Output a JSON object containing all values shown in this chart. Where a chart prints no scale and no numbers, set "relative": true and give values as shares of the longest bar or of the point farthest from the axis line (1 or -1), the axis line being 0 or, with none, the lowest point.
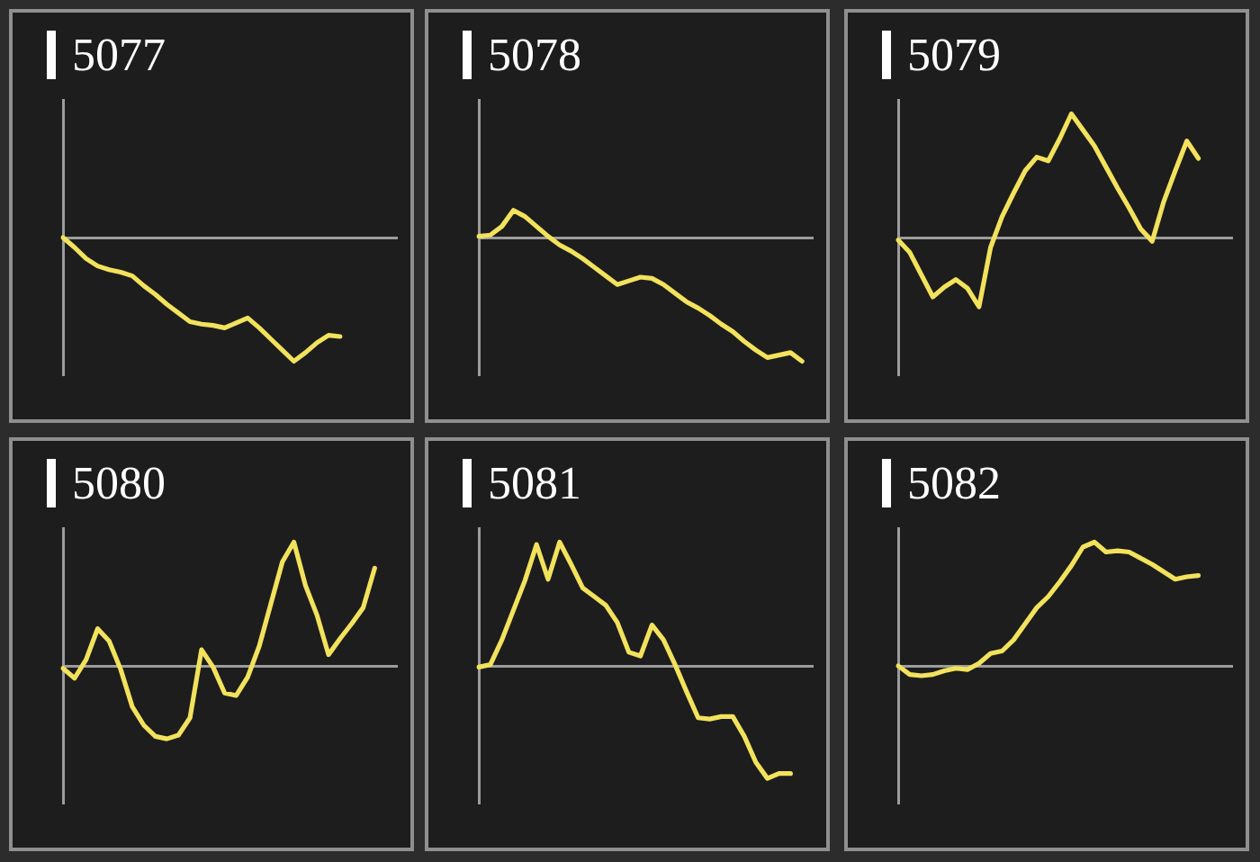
{
  "chart_data": [
    {
      "type": "line",
      "title": "5077",
      "relative": true,
      "color": "#f2e25c",
      "categories": [
        null,
        null,
        null,
        null,
        null,
        null,
        null,
        null,
        null,
        null,
        null,
        null,
        null,
        null,
        null,
        null,
        null,
        null,
        null,
        null,
        null,
        null,
        null,
        null,
        null,
        null,
        null,
        null,
        null,
        null
      ],
      "values": [
        0,
        -0.08,
        -0.17,
        -0.23,
        -0.26,
        -0.28,
        -0.31,
        -0.39,
        -0.46,
        -0.54,
        -0.61,
        -0.68,
        -0.7,
        -0.71,
        -0.73,
        -0.69,
        -0.65,
        -0.73,
        -0.82,
        -0.91,
        -1,
        -0.93,
        -0.85,
        -0.79,
        -0.8,
        null,
        null,
        null,
        null,
        null
      ]
    },
    {
      "type": "line",
      "title": "5078",
      "relative": true,
      "color": "#f2e25c",
      "categories": [
        null,
        null,
        null,
        null,
        null,
        null,
        null,
        null,
        null,
        null,
        null,
        null,
        null,
        null,
        null,
        null,
        null,
        null,
        null,
        null,
        null,
        null,
        null,
        null,
        null,
        null,
        null,
        null,
        null,
        null
      ],
      "values": [
        0.01,
        0.02,
        0.09,
        0.22,
        0.17,
        0.09,
        0.01,
        -0.06,
        -0.11,
        -0.17,
        -0.24,
        -0.31,
        -0.38,
        -0.35,
        -0.32,
        -0.33,
        -0.38,
        -0.45,
        -0.52,
        -0.57,
        -0.63,
        -0.7,
        -0.76,
        -0.84,
        -0.91,
        -0.97,
        -0.95,
        -0.93,
        -1,
        null
      ]
    },
    {
      "type": "line",
      "title": "5079",
      "relative": true,
      "color": "#f2e25c",
      "categories": [
        null,
        null,
        null,
        null,
        null,
        null,
        null,
        null,
        null,
        null,
        null,
        null,
        null,
        null,
        null,
        null,
        null,
        null,
        null,
        null,
        null,
        null,
        null,
        null,
        null,
        null,
        null,
        null,
        null,
        null
      ],
      "values": [
        -0.02,
        -0.12,
        -0.3,
        -0.48,
        -0.4,
        -0.34,
        -0.41,
        -0.56,
        -0.08,
        0.17,
        0.36,
        0.54,
        0.65,
        0.62,
        0.8,
        1,
        0.87,
        0.74,
        0.57,
        0.4,
        0.24,
        0.07,
        -0.03,
        0.29,
        0.54,
        0.78,
        0.64,
        null,
        null,
        null
      ]
    },
    {
      "type": "line",
      "title": "5080",
      "relative": true,
      "color": "#f2e25c",
      "categories": [
        null,
        null,
        null,
        null,
        null,
        null,
        null,
        null,
        null,
        null,
        null,
        null,
        null,
        null,
        null,
        null,
        null,
        null,
        null,
        null,
        null,
        null,
        null,
        null,
        null,
        null,
        null,
        null,
        null,
        null
      ],
      "values": [
        -0.02,
        -0.1,
        0.05,
        0.3,
        0.2,
        -0.03,
        -0.33,
        -0.48,
        -0.57,
        -0.59,
        -0.56,
        -0.42,
        0.13,
        -0.01,
        -0.22,
        -0.24,
        -0.09,
        0.16,
        0.5,
        0.84,
        1,
        0.65,
        0.41,
        0.09,
        0.22,
        0.34,
        0.47,
        0.79,
        null,
        null
      ]
    },
    {
      "type": "line",
      "title": "5081",
      "relative": true,
      "color": "#f2e25c",
      "categories": [
        null,
        null,
        null,
        null,
        null,
        null,
        null,
        null,
        null,
        null,
        null,
        null,
        null,
        null,
        null,
        null,
        null,
        null,
        null,
        null,
        null,
        null,
        null,
        null,
        null,
        null,
        null,
        null,
        null,
        null
      ],
      "values": [
        -0.01,
        0.01,
        0.21,
        0.45,
        0.69,
        0.98,
        0.7,
        1,
        0.82,
        0.63,
        0.56,
        0.49,
        0.35,
        0.11,
        0.08,
        0.33,
        0.21,
        0.01,
        -0.21,
        -0.42,
        -0.43,
        -0.41,
        -0.41,
        -0.57,
        -0.78,
        -0.91,
        -0.87,
        -0.87,
        null,
        null
      ]
    },
    {
      "type": "line",
      "title": "5082",
      "relative": true,
      "color": "#f2e25c",
      "categories": [
        null,
        null,
        null,
        null,
        null,
        null,
        null,
        null,
        null,
        null,
        null,
        null,
        null,
        null,
        null,
        null,
        null,
        null,
        null,
        null,
        null,
        null,
        null,
        null,
        null,
        null,
        null,
        null,
        null,
        null
      ],
      "values": [
        0,
        -0.07,
        -0.08,
        -0.07,
        -0.04,
        -0.02,
        -0.03,
        0.02,
        0.1,
        0.12,
        0.21,
        0.34,
        0.47,
        0.56,
        0.68,
        0.81,
        0.96,
        1,
        0.92,
        0.93,
        0.92,
        0.87,
        0.82,
        0.76,
        0.7,
        0.72,
        0.73,
        null,
        null,
        null
      ]
    }
  ]
}
